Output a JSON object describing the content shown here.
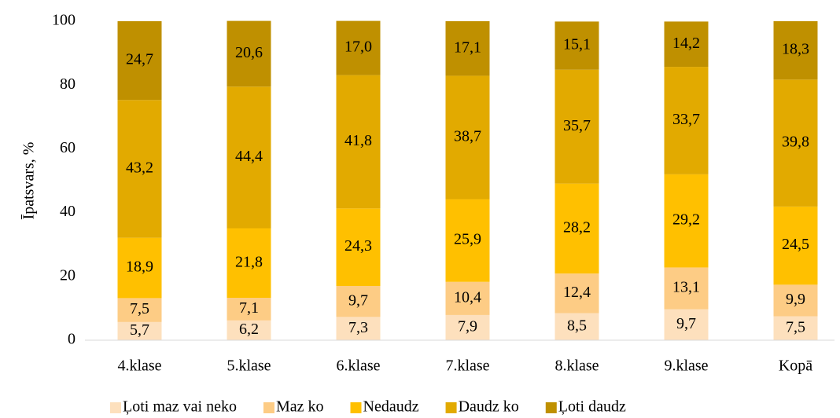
{
  "chart_data": {
    "type": "stacked_bar",
    "y_label": "Īpatsvars, %",
    "categories": [
      "4.klase",
      "5.klase",
      "6.klase",
      "7.klase",
      "8.klase",
      "9.klase",
      "Kopā"
    ],
    "series": [
      {
        "name": "Ļoti maz vai neko",
        "color": "#fde0bd",
        "values": [
          5.7,
          6.2,
          7.3,
          7.9,
          8.5,
          9.7,
          7.5
        ],
        "value_labels": [
          "5,7",
          "6,2",
          "7,3",
          "7,9",
          "8,5",
          "9,7",
          "7,5"
        ]
      },
      {
        "name": "Maz ko",
        "color": "#fdcc85",
        "values": [
          7.5,
          7.1,
          9.7,
          10.4,
          12.4,
          13.1,
          9.9
        ],
        "value_labels": [
          "7,5",
          "7,1",
          "9,7",
          "10,4",
          "12,4",
          "13,1",
          "9,9"
        ]
      },
      {
        "name": "Nedaudz",
        "color": "#ffc000",
        "values": [
          18.9,
          21.8,
          24.3,
          25.9,
          28.2,
          29.2,
          24.5
        ],
        "value_labels": [
          "18,9",
          "21,8",
          "24,3",
          "25,9",
          "28,2",
          "29,2",
          "24,5"
        ]
      },
      {
        "name": "Daudz ko",
        "color": "#e2aa00",
        "values": [
          43.2,
          44.4,
          41.8,
          38.7,
          35.7,
          33.7,
          39.8
        ],
        "value_labels": [
          "43,2",
          "44,4",
          "41,8",
          "38,7",
          "35,7",
          "33,7",
          "39,8"
        ]
      },
      {
        "name": "Ļoti daudz",
        "color": "#bf9000",
        "values": [
          24.7,
          20.6,
          17.0,
          17.1,
          15.1,
          14.2,
          18.3
        ],
        "value_labels": [
          "24,7",
          "20,6",
          "17,0",
          "17,1",
          "15,1",
          "14,2",
          "18,3"
        ]
      }
    ],
    "ylim": [
      0,
      100
    ],
    "yticks": [
      0,
      20,
      40,
      60,
      80,
      100
    ],
    "grid": false,
    "legend": "bottom"
  }
}
